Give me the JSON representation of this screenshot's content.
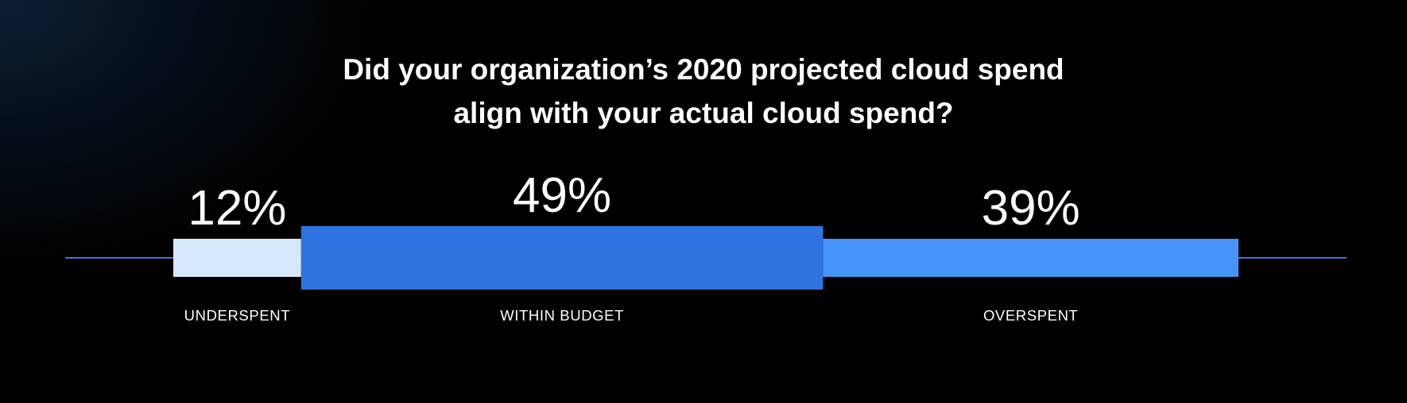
{
  "title_lines": [
    "Did your organization’s 2020 projected cloud spend",
    "align with your actual cloud spend?"
  ],
  "colors": {
    "background": "#000000",
    "axis_line": "#3d73e0",
    "underspent": "#d6e8fb",
    "within_budget": "#2f73e0",
    "overspent": "#4494fa"
  },
  "chart_data": {
    "type": "bar",
    "orientation": "horizontal-stacked",
    "title": "Did your organization’s 2020 projected cloud spend align with your actual cloud spend?",
    "unit": "%",
    "categories": [
      "UNDERSPENT",
      "WITHIN BUDGET",
      "OVERSPENT"
    ],
    "values": [
      12,
      49,
      39
    ],
    "value_labels": [
      "12%",
      "49%",
      "39%"
    ],
    "colors": [
      "#d6e8fb",
      "#2f73e0",
      "#4494fa"
    ],
    "emphasized_category": "WITHIN BUDGET",
    "legend": "none",
    "grid": false
  }
}
